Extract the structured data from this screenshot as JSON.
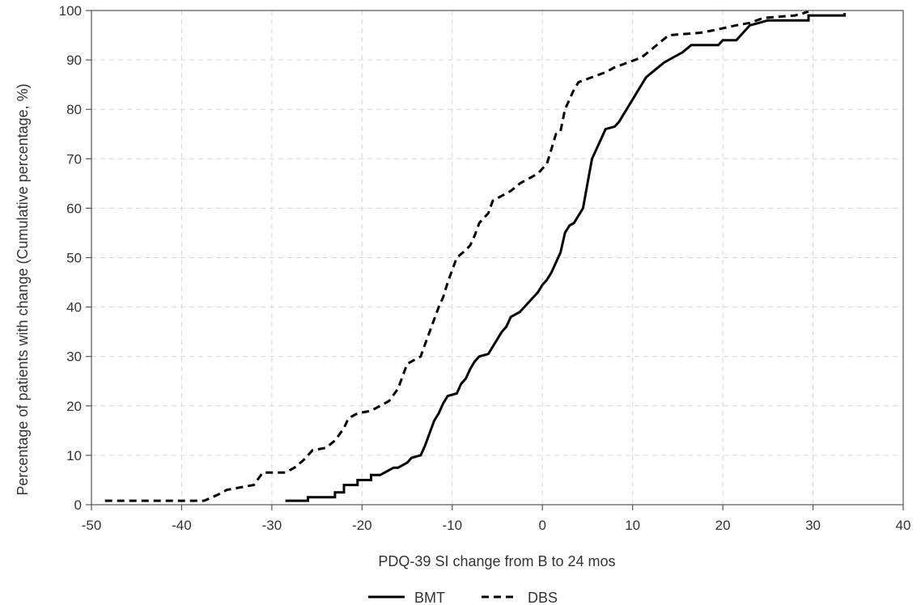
{
  "chart_data": {
    "type": "line",
    "step": true,
    "title": "",
    "xlabel": "PDQ-39 SI change from B to 24 mos",
    "ylabel": "Percentage of patients with change (Cumulative percentage, %)",
    "xlim": [
      -50,
      40
    ],
    "ylim": [
      0,
      100
    ],
    "xticks": [
      -50,
      -40,
      -30,
      -20,
      -10,
      0,
      10,
      20,
      30,
      40
    ],
    "yticks": [
      0,
      10,
      20,
      30,
      40,
      50,
      60,
      70,
      80,
      90,
      100
    ],
    "grid": "dashed",
    "legend": "bottom",
    "series": [
      {
        "name": "BMT",
        "line_style": "solid",
        "color": "#000000",
        "points": [
          [
            -28.5,
            0.8
          ],
          [
            -26,
            0.8
          ],
          [
            -26,
            1.5
          ],
          [
            -23,
            1.5
          ],
          [
            -23,
            2.5
          ],
          [
            -22,
            2.5
          ],
          [
            -22,
            4
          ],
          [
            -20.5,
            4
          ],
          [
            -20.5,
            5
          ],
          [
            -19,
            5
          ],
          [
            -19,
            6
          ],
          [
            -18,
            6
          ],
          [
            -17.5,
            6.5
          ],
          [
            -16.5,
            7.5
          ],
          [
            -16,
            7.5
          ],
          [
            -15,
            8.5
          ],
          [
            -14.5,
            9.5
          ],
          [
            -13.5,
            10
          ],
          [
            -13,
            12
          ],
          [
            -12.5,
            14.5
          ],
          [
            -12,
            17
          ],
          [
            -11.5,
            18.5
          ],
          [
            -11,
            20.5
          ],
          [
            -10.5,
            22
          ],
          [
            -9.5,
            22.5
          ],
          [
            -9,
            24.5
          ],
          [
            -8.5,
            25.5
          ],
          [
            -8,
            27.5
          ],
          [
            -7.5,
            29
          ],
          [
            -7,
            30
          ],
          [
            -6,
            30.5
          ],
          [
            -5.5,
            32
          ],
          [
            -5,
            33.5
          ],
          [
            -4.5,
            35
          ],
          [
            -4,
            36
          ],
          [
            -3.5,
            38
          ],
          [
            -2.5,
            39
          ],
          [
            -2,
            40
          ],
          [
            -1.5,
            41
          ],
          [
            -1,
            42
          ],
          [
            -0.5,
            43
          ],
          [
            0,
            44.5
          ],
          [
            0.5,
            45.5
          ],
          [
            1,
            47
          ],
          [
            1.5,
            49
          ],
          [
            2,
            51
          ],
          [
            2.5,
            55
          ],
          [
            3,
            56.5
          ],
          [
            3.5,
            57
          ],
          [
            4,
            58.5
          ],
          [
            4.5,
            60
          ],
          [
            5,
            65
          ],
          [
            5.5,
            70
          ],
          [
            6,
            72
          ],
          [
            6.5,
            74
          ],
          [
            7,
            76
          ],
          [
            8,
            76.5
          ],
          [
            8.5,
            77.5
          ],
          [
            9,
            79
          ],
          [
            9.5,
            80.5
          ],
          [
            10,
            82
          ],
          [
            10.5,
            83.5
          ],
          [
            11,
            85
          ],
          [
            11.5,
            86.5
          ],
          [
            12.5,
            88
          ],
          [
            13.5,
            89.5
          ],
          [
            14.5,
            90.5
          ],
          [
            15.5,
            91.5
          ],
          [
            16.5,
            93
          ],
          [
            19.5,
            93
          ],
          [
            20,
            94
          ],
          [
            21.5,
            94
          ],
          [
            22,
            95
          ],
          [
            22.5,
            96
          ],
          [
            23,
            97
          ],
          [
            24,
            97.5
          ],
          [
            25,
            98
          ],
          [
            29.5,
            98
          ],
          [
            29.5,
            99
          ],
          [
            33.5,
            99
          ],
          [
            33.5,
            99.5
          ]
        ]
      },
      {
        "name": "DBS",
        "line_style": "dashed",
        "color": "#000000",
        "points": [
          [
            -48.5,
            0.8
          ],
          [
            -37.5,
            0.8
          ],
          [
            -36,
            2
          ],
          [
            -35,
            3
          ],
          [
            -33.5,
            3.5
          ],
          [
            -32,
            4
          ],
          [
            -31,
            6.5
          ],
          [
            -28.5,
            6.5
          ],
          [
            -27.5,
            7.5
          ],
          [
            -26.5,
            9
          ],
          [
            -25.5,
            11
          ],
          [
            -24,
            11.5
          ],
          [
            -23,
            13
          ],
          [
            -22,
            15.5
          ],
          [
            -21.5,
            17.5
          ],
          [
            -20.5,
            18.5
          ],
          [
            -19,
            19
          ],
          [
            -18,
            20
          ],
          [
            -17,
            21
          ],
          [
            -16,
            23.5
          ],
          [
            -15.5,
            26
          ],
          [
            -15,
            28.5
          ],
          [
            -13.5,
            30
          ],
          [
            -13,
            32.5
          ],
          [
            -12.5,
            35
          ],
          [
            -12,
            37.5
          ],
          [
            -11.5,
            40
          ],
          [
            -11,
            42
          ],
          [
            -10.5,
            45
          ],
          [
            -10,
            47.5
          ],
          [
            -9.5,
            50
          ],
          [
            -8.5,
            51.5
          ],
          [
            -8,
            52.5
          ],
          [
            -7.5,
            54.5
          ],
          [
            -7,
            57
          ],
          [
            -6,
            59
          ],
          [
            -5.5,
            61.5
          ],
          [
            -4.5,
            62.5
          ],
          [
            -3.5,
            63.5
          ],
          [
            -2.5,
            65
          ],
          [
            -1.5,
            66
          ],
          [
            -0.5,
            67
          ],
          [
            0.5,
            69
          ],
          [
            1,
            72
          ],
          [
            1.5,
            75
          ],
          [
            2,
            75.5
          ],
          [
            2.5,
            80
          ],
          [
            3,
            82
          ],
          [
            3.5,
            84
          ],
          [
            4,
            85.5
          ],
          [
            5.5,
            86.5
          ],
          [
            7,
            87.5
          ],
          [
            8,
            88.5
          ],
          [
            9.5,
            89.5
          ],
          [
            11,
            90.5
          ],
          [
            12,
            92
          ],
          [
            13,
            93.5
          ],
          [
            14,
            95
          ],
          [
            17.5,
            95.5
          ],
          [
            19,
            96
          ],
          [
            21.5,
            97
          ],
          [
            23,
            97.5
          ],
          [
            24.5,
            98.5
          ],
          [
            28,
            99
          ],
          [
            29,
            99.5
          ],
          [
            29.5,
            99.8
          ]
        ]
      }
    ]
  }
}
